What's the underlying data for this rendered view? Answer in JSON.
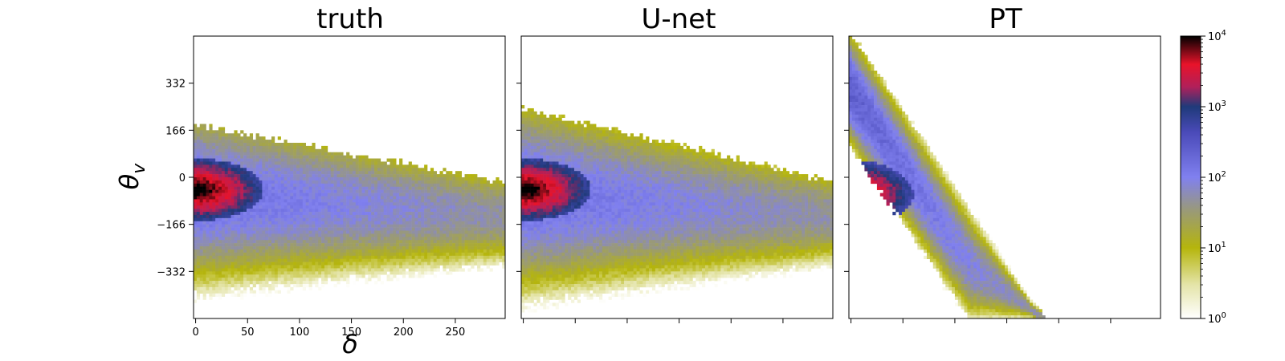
{
  "chart_data": {
    "type": "heatmap",
    "panels": [
      {
        "title": "truth",
        "model": "truth"
      },
      {
        "title": "U-net",
        "model": "unet"
      },
      {
        "title": "PT",
        "model": "pt"
      }
    ],
    "xlabel": "δ",
    "ylabel": "θ_v",
    "xlim": [
      -2,
      298
    ],
    "ylim": [
      -498,
      498
    ],
    "xticks": [
      0,
      50,
      100,
      150,
      200,
      250
    ],
    "xtick_labels": [
      "0",
      "50",
      "100",
      "150",
      "200",
      "250"
    ],
    "yticks": [
      332,
      166,
      0,
      -166,
      -332
    ],
    "ytick_labels": [
      "332",
      "166",
      "0",
      "−166",
      "−332"
    ],
    "shared_axes": true,
    "colorbar": {
      "scale": "log",
      "range": [
        1,
        10000
      ],
      "ticks": [
        1,
        10,
        100,
        1000,
        10000
      ],
      "tick_labels": [
        "10^0",
        "10^1",
        "10^2",
        "10^3",
        "10^4"
      ],
      "colors": [
        "#ffffff",
        "#b5b50c",
        "#7f7ff0",
        "#1f3a7a",
        "#e8132a",
        "#000000"
      ]
    },
    "panel_shapes": [
      {
        "model": "truth",
        "core_center": [
          0,
          -45
        ],
        "core_half_height": 110,
        "core_reach": 65,
        "band_top_at_0": 170,
        "band_top_at_300": -30,
        "band_bottom_at_0": -480,
        "band_bottom_at_300": -400
      },
      {
        "model": "unet",
        "core_center": [
          0,
          -45
        ],
        "core_half_height": 110,
        "core_reach": 65,
        "band_top_at_0": 230,
        "band_top_at_300": -10,
        "band_bottom_at_0": -480,
        "band_bottom_at_300": -400
      },
      {
        "model": "pt",
        "core_center": [
          0,
          -60
        ],
        "core_half_height": 120,
        "core_reach": 60,
        "band_top_at_0": 498,
        "band_top_at_180": -498,
        "band_bottom_at_0": -498
      }
    ]
  }
}
